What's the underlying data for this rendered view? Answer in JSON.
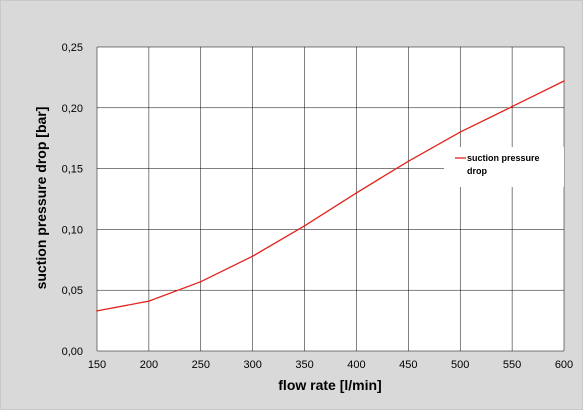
{
  "chart_data": {
    "type": "line",
    "xlabel": "flow rate [l/min]",
    "ylabel": "suction pressure drop [bar]",
    "xlim": [
      150,
      600
    ],
    "ylim": [
      0,
      0.25
    ],
    "x_ticks": [
      150,
      200,
      250,
      300,
      350,
      400,
      450,
      500,
      550,
      600
    ],
    "x_tick_labels": [
      "150",
      "200",
      "250",
      "300",
      "350",
      "400",
      "450",
      "500",
      "550",
      "600"
    ],
    "y_ticks": [
      0,
      0.05,
      0.1,
      0.15,
      0.2,
      0.25
    ],
    "y_tick_labels": [
      "0,00",
      "0,05",
      "0,10",
      "0,15",
      "0,20",
      "0,25"
    ],
    "grid": true,
    "legend_position": "right",
    "series": [
      {
        "name": "suction pressure drop",
        "legend_lines": [
          "suction pressure",
          "drop"
        ],
        "color": "#e2231a",
        "x": [
          150,
          200,
          250,
          300,
          350,
          400,
          450,
          500,
          550,
          600
        ],
        "y": [
          0.033,
          0.041,
          0.057,
          0.078,
          0.103,
          0.13,
          0.156,
          0.18,
          0.201,
          0.222
        ]
      }
    ]
  },
  "colors": {
    "background": "#d9d9d9",
    "plot_area": "#ffffff",
    "grid": "#000000"
  }
}
